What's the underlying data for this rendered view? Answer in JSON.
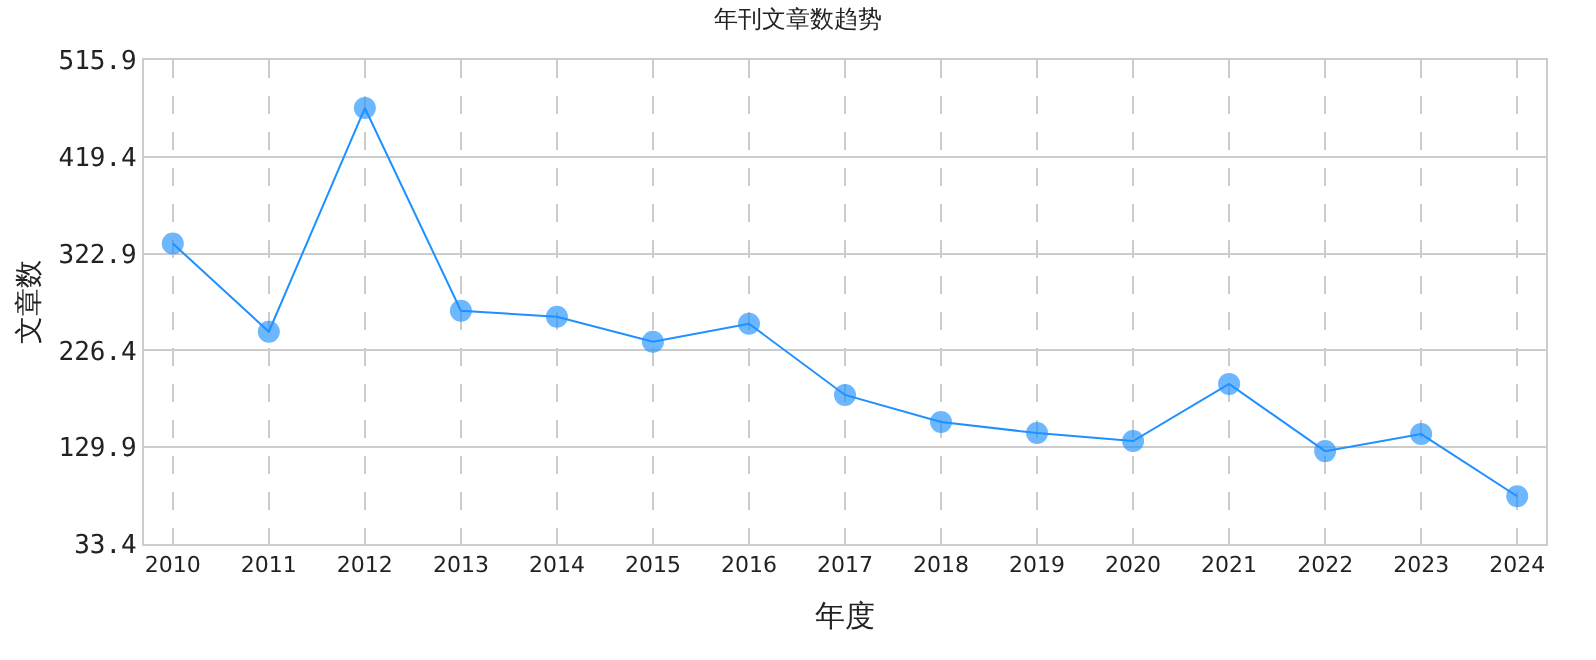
{
  "chart_data": {
    "type": "line",
    "title": "年刊文章数趋势",
    "xlabel": "年度",
    "ylabel": "文章数",
    "categories": [
      "2010",
      "2011",
      "2012",
      "2013",
      "2014",
      "2015",
      "2016",
      "2017",
      "2018",
      "2019",
      "2020",
      "2021",
      "2022",
      "2023",
      "2024"
    ],
    "series": [
      {
        "color": "#1e90ff",
        "values": [
          333,
          245,
          468,
          266,
          260,
          235,
          253,
          182,
          155,
          144,
          136,
          193,
          126,
          143,
          81
        ]
      }
    ],
    "ylim": [
      33.4,
      515.9
    ],
    "yticks": [
      33.4,
      129.9,
      226.4,
      322.9,
      419.4,
      515.9
    ],
    "grid": true,
    "marker": "circle",
    "line_style": "solid",
    "legend": false
  }
}
